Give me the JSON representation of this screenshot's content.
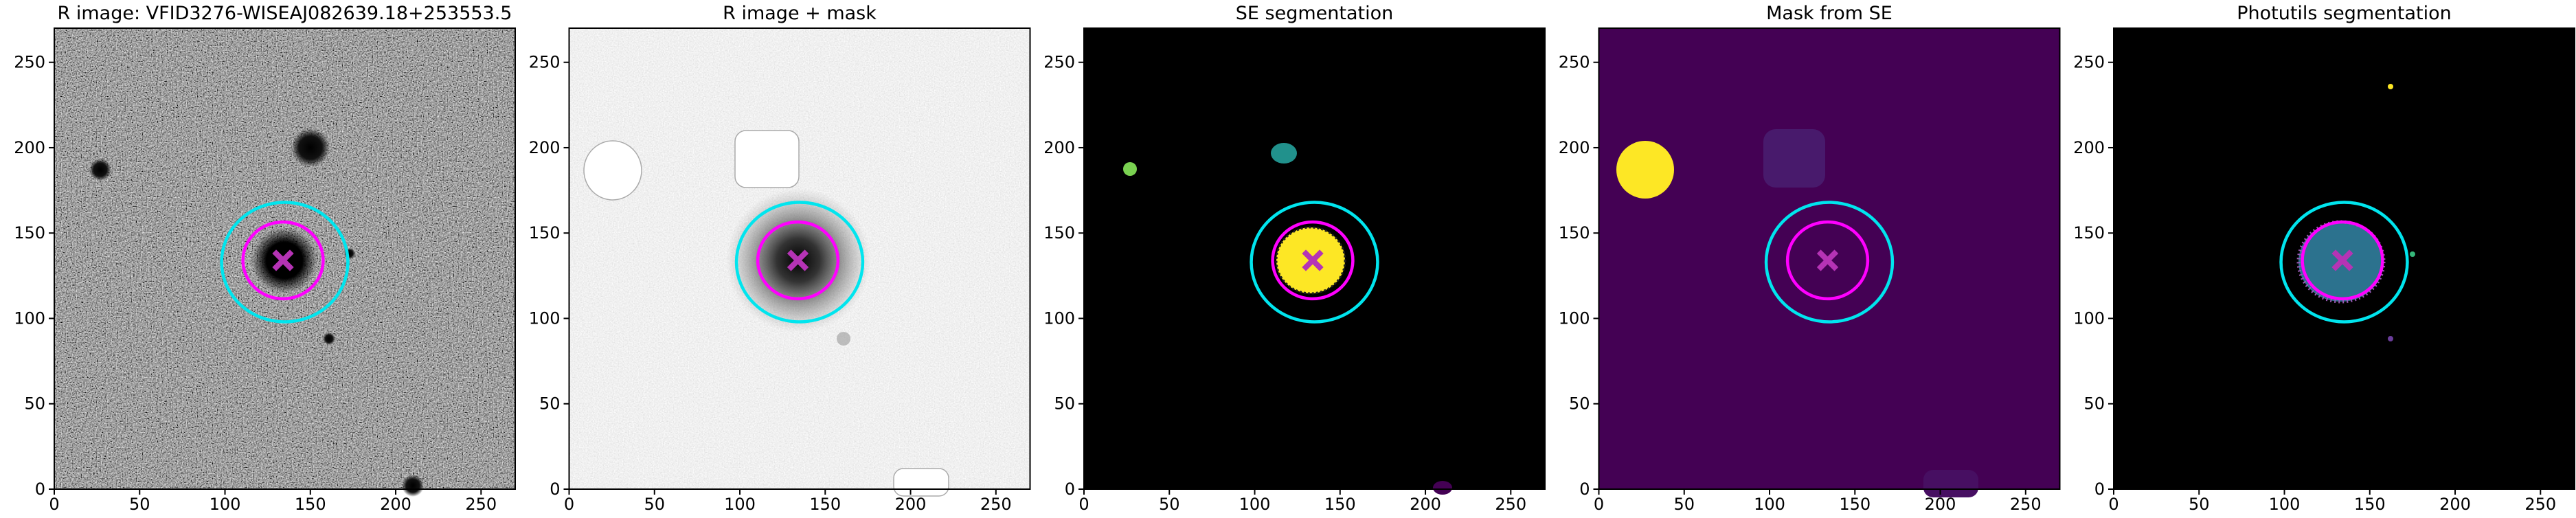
{
  "chart_data": [
    {
      "type": "image",
      "title": "R image: VFID3276-WISEAJ082639.18+253553.5",
      "background": "#3c3c3c",
      "xlim": [
        0,
        270
      ],
      "ylim": [
        0,
        270
      ],
      "xticks": [
        0,
        50,
        100,
        150,
        200,
        250
      ],
      "yticks": [
        0,
        50,
        100,
        150,
        200,
        250
      ],
      "ellipses": [
        {
          "cx": 135,
          "cy": 133,
          "rx": 37,
          "ry": 35,
          "color": "#00e5ee"
        },
        {
          "cx": 134,
          "cy": 134,
          "rx": 23.5,
          "ry": 22.5,
          "color": "#ff00ff"
        }
      ],
      "marker": {
        "x": 134,
        "y": 134,
        "color": "#b533b5"
      }
    },
    {
      "type": "image",
      "title": "R image + mask",
      "background": "#dcdcdc",
      "xlim": [
        0,
        270
      ],
      "ylim": [
        0,
        270
      ],
      "xticks": [
        0,
        50,
        100,
        150,
        200,
        250
      ],
      "yticks": [
        0,
        50,
        100,
        150,
        200,
        250
      ],
      "ellipses": [
        {
          "cx": 135,
          "cy": 133,
          "rx": 37,
          "ry": 35,
          "color": "#00e5ee"
        },
        {
          "cx": 134,
          "cy": 134,
          "rx": 23.5,
          "ry": 22.5,
          "color": "#ff00ff"
        }
      ],
      "marker": {
        "x": 134,
        "y": 134,
        "color": "#b533b5"
      }
    },
    {
      "type": "image",
      "title": "SE segmentation",
      "background": "#000000",
      "xlim": [
        0,
        270
      ],
      "ylim": [
        0,
        270
      ],
      "xticks": [
        0,
        50,
        100,
        150,
        200,
        250
      ],
      "yticks": [
        0,
        50,
        100,
        150,
        200,
        250
      ],
      "ellipses": [
        {
          "cx": 135,
          "cy": 133,
          "rx": 37,
          "ry": 35,
          "color": "#00e5ee"
        },
        {
          "cx": 134,
          "cy": 134,
          "rx": 23.5,
          "ry": 22.5,
          "color": "#ff00ff"
        }
      ],
      "marker": {
        "x": 134,
        "y": 134,
        "color": "#b533b5"
      }
    },
    {
      "type": "image",
      "title": "Mask from SE",
      "background": "#440154",
      "xlim": [
        0,
        270
      ],
      "ylim": [
        0,
        270
      ],
      "xticks": [
        0,
        50,
        100,
        150,
        200,
        250
      ],
      "yticks": [
        0,
        50,
        100,
        150,
        200,
        250
      ],
      "ellipses": [
        {
          "cx": 135,
          "cy": 133,
          "rx": 37,
          "ry": 35,
          "color": "#00e5ee"
        },
        {
          "cx": 134,
          "cy": 134,
          "rx": 23.5,
          "ry": 22.5,
          "color": "#ff00ff"
        }
      ],
      "marker": {
        "x": 134,
        "y": 134,
        "color": "#b533b5"
      }
    },
    {
      "type": "image",
      "title": "Photutils segmentation",
      "background": "#000000",
      "xlim": [
        0,
        270
      ],
      "ylim": [
        0,
        270
      ],
      "xticks": [
        0,
        50,
        100,
        150,
        200,
        250
      ],
      "yticks": [
        0,
        50,
        100,
        150,
        200,
        250
      ],
      "ellipses": [
        {
          "cx": 135,
          "cy": 133,
          "rx": 37,
          "ry": 35,
          "color": "#00e5ee"
        },
        {
          "cx": 134,
          "cy": 134,
          "rx": 23.5,
          "ry": 22.5,
          "color": "#ff00ff"
        }
      ],
      "marker": {
        "x": 134,
        "y": 134,
        "color": "#b533b5"
      }
    }
  ]
}
